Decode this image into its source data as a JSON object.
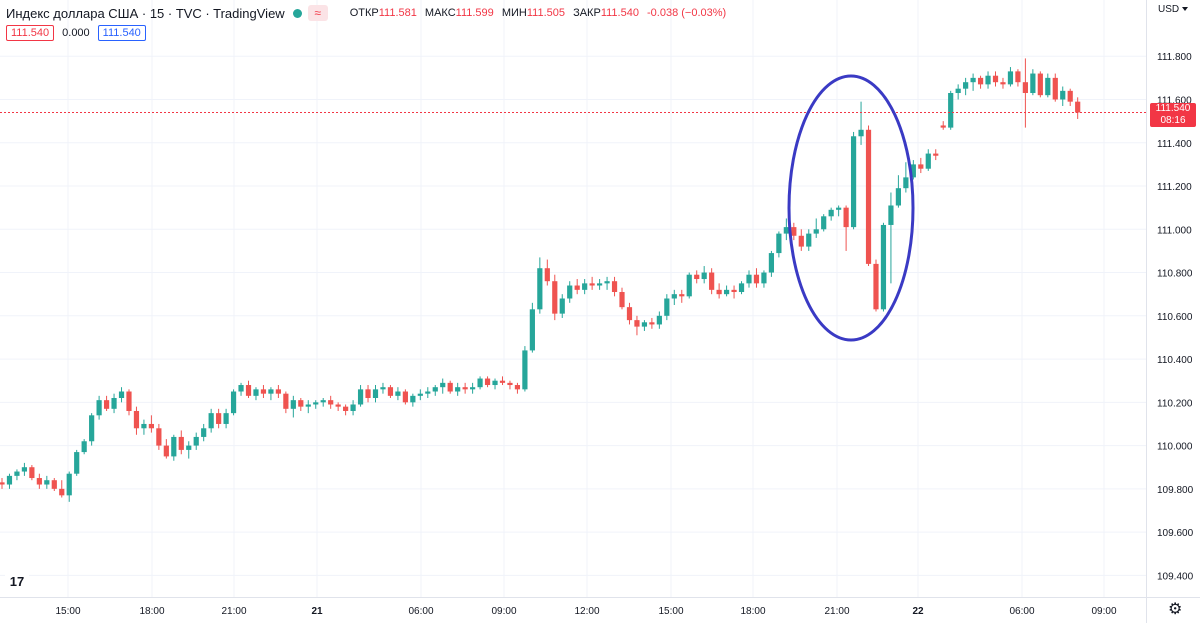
{
  "header": {
    "title": "Индекс доллара США · 15 · TVC · TradingView",
    "badge": "≈",
    "ohlc": [
      {
        "key": "ОТКР",
        "value": "111.581"
      },
      {
        "key": "МАКС",
        "value": "111.599"
      },
      {
        "key": "МИН",
        "value": "111.505"
      },
      {
        "key": "ЗАКР",
        "value": "111.540"
      },
      {
        "key": "",
        "value": "-0.038 (−0.03%)"
      }
    ],
    "value_boxes": {
      "left": "111.540",
      "middle": "0.000",
      "right": "111.540"
    }
  },
  "price_axis": {
    "currency": "USD",
    "current_price": "111.540",
    "countdown": "08:16"
  },
  "logo": "17",
  "colors": {
    "up": "#26a69a",
    "down": "#ef5350",
    "ellipse": "#3a3ac4",
    "price_line": "#f23645"
  },
  "chart_data": {
    "type": "candlestick",
    "y_ticks": [
      "111.800",
      "111.600",
      "111.400",
      "111.200",
      "111.000",
      "110.800",
      "110.600",
      "110.400",
      "110.200",
      "110.000",
      "109.800",
      "109.600",
      "109.400"
    ],
    "x_ticks": [
      "15:00",
      "18:00",
      "21:00",
      "21",
      "06:00",
      "09:00",
      "12:00",
      "15:00",
      "18:00",
      "21:00",
      "22",
      "06:00",
      "09:00"
    ],
    "bold_x_ticks": [
      "21",
      "22"
    ],
    "ylim": [
      109.3,
      112.06
    ],
    "last_price": 111.54,
    "grid": true,
    "annotation": {
      "type": "ellipse",
      "around": "20 Nov 20:45–22:45 spike"
    },
    "candles": [
      [
        109.83,
        109.85,
        109.8,
        109.82
      ],
      [
        109.82,
        109.87,
        109.8,
        109.86
      ],
      [
        109.86,
        109.89,
        109.84,
        109.88
      ],
      [
        109.88,
        109.92,
        109.86,
        109.9
      ],
      [
        109.9,
        109.91,
        109.84,
        109.85
      ],
      [
        109.85,
        109.87,
        109.8,
        109.82
      ],
      [
        109.82,
        109.86,
        109.8,
        109.84
      ],
      [
        109.84,
        109.85,
        109.79,
        109.8
      ],
      [
        109.8,
        109.84,
        109.76,
        109.77
      ],
      [
        109.77,
        109.88,
        109.74,
        109.87
      ],
      [
        109.87,
        109.98,
        109.86,
        109.97
      ],
      [
        109.97,
        110.03,
        109.96,
        110.02
      ],
      [
        110.02,
        110.15,
        110.0,
        110.14
      ],
      [
        110.14,
        110.23,
        110.12,
        110.21
      ],
      [
        110.21,
        110.23,
        110.16,
        110.17
      ],
      [
        110.17,
        110.24,
        110.15,
        110.22
      ],
      [
        110.22,
        110.27,
        110.2,
        110.25
      ],
      [
        110.25,
        110.26,
        110.14,
        110.16
      ],
      [
        110.16,
        110.18,
        110.05,
        110.08
      ],
      [
        110.08,
        110.12,
        110.05,
        110.1
      ],
      [
        110.1,
        110.14,
        110.06,
        110.08
      ],
      [
        110.08,
        110.1,
        109.98,
        110.0
      ],
      [
        110.0,
        110.03,
        109.94,
        109.95
      ],
      [
        109.95,
        110.05,
        109.93,
        110.04
      ],
      [
        110.04,
        110.07,
        109.96,
        109.98
      ],
      [
        109.98,
        110.02,
        109.94,
        110.0
      ],
      [
        110.0,
        110.06,
        109.98,
        110.04
      ],
      [
        110.04,
        110.1,
        110.02,
        110.08
      ],
      [
        110.08,
        110.17,
        110.06,
        110.15
      ],
      [
        110.15,
        110.17,
        110.08,
        110.1
      ],
      [
        110.1,
        110.17,
        110.08,
        110.15
      ],
      [
        110.15,
        110.26,
        110.14,
        110.25
      ],
      [
        110.25,
        110.29,
        110.23,
        110.28
      ],
      [
        110.28,
        110.3,
        110.22,
        110.23
      ],
      [
        110.23,
        110.27,
        110.21,
        110.26
      ],
      [
        110.26,
        110.28,
        110.22,
        110.24
      ],
      [
        110.24,
        110.27,
        110.21,
        110.26
      ],
      [
        110.26,
        110.28,
        110.22,
        110.24
      ],
      [
        110.24,
        110.25,
        110.15,
        110.17
      ],
      [
        110.17,
        110.23,
        110.13,
        110.21
      ],
      [
        110.21,
        110.22,
        110.16,
        110.18
      ],
      [
        110.18,
        110.21,
        110.15,
        110.19
      ],
      [
        110.19,
        110.21,
        110.17,
        110.2
      ],
      [
        110.2,
        110.22,
        110.18,
        110.21
      ],
      [
        110.21,
        110.23,
        110.17,
        110.19
      ],
      [
        110.19,
        110.2,
        110.16,
        110.18
      ],
      [
        110.18,
        110.19,
        110.14,
        110.16
      ],
      [
        110.16,
        110.21,
        110.14,
        110.19
      ],
      [
        110.19,
        110.28,
        110.18,
        110.26
      ],
      [
        110.26,
        110.28,
        110.2,
        110.22
      ],
      [
        110.22,
        110.28,
        110.2,
        110.26
      ],
      [
        110.26,
        110.29,
        110.24,
        110.27
      ],
      [
        110.27,
        110.28,
        110.22,
        110.23
      ],
      [
        110.23,
        110.27,
        110.21,
        110.25
      ],
      [
        110.25,
        110.26,
        110.19,
        110.2
      ],
      [
        110.2,
        110.24,
        110.18,
        110.23
      ],
      [
        110.23,
        110.26,
        110.21,
        110.24
      ],
      [
        110.24,
        110.27,
        110.22,
        110.25
      ],
      [
        110.25,
        110.28,
        110.23,
        110.27
      ],
      [
        110.27,
        110.31,
        110.24,
        110.29
      ],
      [
        110.29,
        110.3,
        110.24,
        110.25
      ],
      [
        110.25,
        110.29,
        110.23,
        110.27
      ],
      [
        110.27,
        110.29,
        110.24,
        110.26
      ],
      [
        110.26,
        110.29,
        110.24,
        110.27
      ],
      [
        110.27,
        110.32,
        110.26,
        110.31
      ],
      [
        110.31,
        110.32,
        110.27,
        110.28
      ],
      [
        110.28,
        110.31,
        110.26,
        110.3
      ],
      [
        110.3,
        110.32,
        110.28,
        110.29
      ],
      [
        110.29,
        110.3,
        110.26,
        110.28
      ],
      [
        110.28,
        110.29,
        110.24,
        110.26
      ],
      [
        110.26,
        110.46,
        110.25,
        110.44
      ],
      [
        110.44,
        110.66,
        110.43,
        110.63
      ],
      [
        110.63,
        110.87,
        110.61,
        110.82
      ],
      [
        110.82,
        110.86,
        110.74,
        110.76
      ],
      [
        110.76,
        110.79,
        110.58,
        110.61
      ],
      [
        110.61,
        110.7,
        110.59,
        110.68
      ],
      [
        110.68,
        110.76,
        110.66,
        110.74
      ],
      [
        110.74,
        110.77,
        110.7,
        110.72
      ],
      [
        110.72,
        110.77,
        110.7,
        110.75
      ],
      [
        110.75,
        110.78,
        110.72,
        110.74
      ],
      [
        110.74,
        110.77,
        110.72,
        110.75
      ],
      [
        110.75,
        110.78,
        110.72,
        110.76
      ],
      [
        110.76,
        110.78,
        110.69,
        110.71
      ],
      [
        110.71,
        110.73,
        110.63,
        110.64
      ],
      [
        110.64,
        110.66,
        110.56,
        110.58
      ],
      [
        110.58,
        110.6,
        110.51,
        110.55
      ],
      [
        110.55,
        110.58,
        110.53,
        110.57
      ],
      [
        110.57,
        110.59,
        110.54,
        110.56
      ],
      [
        110.56,
        110.62,
        110.54,
        110.6
      ],
      [
        110.6,
        110.7,
        110.58,
        110.68
      ],
      [
        110.68,
        110.72,
        110.65,
        110.7
      ],
      [
        110.7,
        110.72,
        110.66,
        110.69
      ],
      [
        110.69,
        110.8,
        110.68,
        110.79
      ],
      [
        110.79,
        110.81,
        110.75,
        110.77
      ],
      [
        110.77,
        110.83,
        110.75,
        110.8
      ],
      [
        110.8,
        110.82,
        110.7,
        110.72
      ],
      [
        110.72,
        110.75,
        110.68,
        110.7
      ],
      [
        110.7,
        110.74,
        110.69,
        110.72
      ],
      [
        110.72,
        110.74,
        110.68,
        110.71
      ],
      [
        110.71,
        110.76,
        110.7,
        110.75
      ],
      [
        110.75,
        110.81,
        110.73,
        110.79
      ],
      [
        110.79,
        110.82,
        110.73,
        110.75
      ],
      [
        110.75,
        110.81,
        110.73,
        110.8
      ],
      [
        110.8,
        110.9,
        110.78,
        110.89
      ],
      [
        110.89,
        110.99,
        110.87,
        110.98
      ],
      [
        110.98,
        111.05,
        110.95,
        111.01
      ],
      [
        111.01,
        111.03,
        110.95,
        110.97
      ],
      [
        110.97,
        111.0,
        110.9,
        110.92
      ],
      [
        110.92,
        111.0,
        110.9,
        110.98
      ],
      [
        110.98,
        111.05,
        110.96,
        111.0
      ],
      [
        111.0,
        111.07,
        110.99,
        111.06
      ],
      [
        111.06,
        111.1,
        111.04,
        111.09
      ],
      [
        111.09,
        111.11,
        111.06,
        111.1
      ],
      [
        111.1,
        111.11,
        110.9,
        111.01
      ],
      [
        111.01,
        111.45,
        111.0,
        111.43
      ],
      [
        111.43,
        111.59,
        111.39,
        111.46
      ],
      [
        111.46,
        111.48,
        110.83,
        110.84
      ],
      [
        110.84,
        110.86,
        110.62,
        110.63
      ],
      [
        110.63,
        111.03,
        110.62,
        111.02
      ],
      [
        111.02,
        111.17,
        110.75,
        111.11
      ],
      [
        111.11,
        111.25,
        111.1,
        111.19
      ],
      [
        111.19,
        111.31,
        111.17,
        111.24
      ],
      [
        111.24,
        111.32,
        111.23,
        111.3
      ],
      [
        111.3,
        111.33,
        111.26,
        111.28
      ],
      [
        111.28,
        111.37,
        111.27,
        111.35
      ],
      [
        111.35,
        111.37,
        111.32,
        111.34
      ],
      [
        111.48,
        111.5,
        111.46,
        111.47
      ],
      [
        111.47,
        111.64,
        111.46,
        111.63
      ],
      [
        111.63,
        111.67,
        111.6,
        111.65
      ],
      [
        111.65,
        111.7,
        111.62,
        111.68
      ],
      [
        111.68,
        111.72,
        111.64,
        111.7
      ],
      [
        111.7,
        111.71,
        111.65,
        111.67
      ],
      [
        111.67,
        111.73,
        111.65,
        111.71
      ],
      [
        111.71,
        111.73,
        111.66,
        111.68
      ],
      [
        111.68,
        111.7,
        111.65,
        111.67
      ],
      [
        111.67,
        111.75,
        111.66,
        111.73
      ],
      [
        111.73,
        111.74,
        111.66,
        111.68
      ],
      [
        111.68,
        111.79,
        111.47,
        111.63
      ],
      [
        111.63,
        111.74,
        111.62,
        111.72
      ],
      [
        111.72,
        111.73,
        111.61,
        111.62
      ],
      [
        111.62,
        111.72,
        111.61,
        111.7
      ],
      [
        111.7,
        111.72,
        111.59,
        111.6
      ],
      [
        111.6,
        111.66,
        111.57,
        111.64
      ],
      [
        111.64,
        111.65,
        111.57,
        111.59
      ],
      [
        111.59,
        111.61,
        111.51,
        111.54
      ]
    ]
  }
}
